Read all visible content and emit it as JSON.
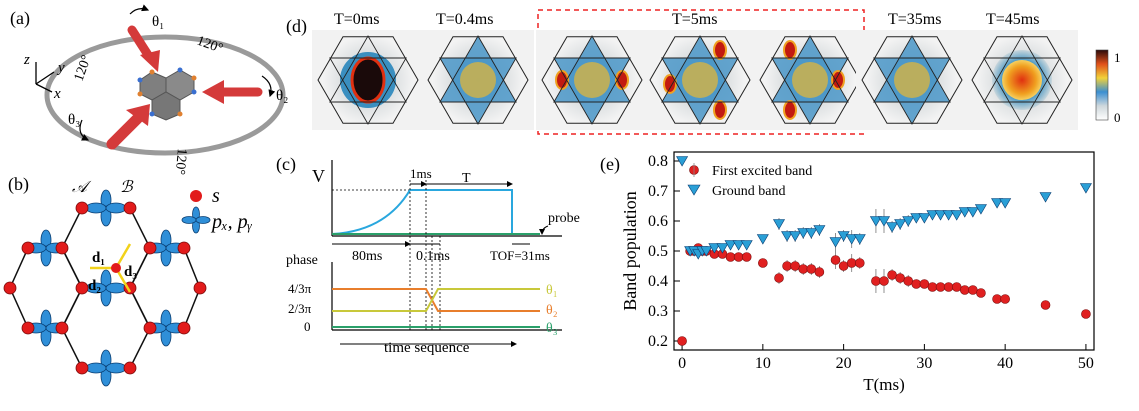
{
  "panels": {
    "a": "(a)",
    "b": "(b)",
    "c": "(c)",
    "d": "(d)",
    "e": "(e)"
  },
  "panel_a": {
    "theta1": "θ₁",
    "theta2": "θ₂",
    "theta3": "θ₃",
    "angle_top": "120°",
    "angle_left": "120°",
    "angle_bottom": "120°",
    "axis_z": "z",
    "axis_y": "y",
    "axis_x": "x"
  },
  "panel_b": {
    "sublattice_A": "𝒜",
    "sublattice_B": "ℬ",
    "legend_s": "s",
    "legend_p": "pₓ, pᵧ",
    "d1": "d₁",
    "d2": "d₂",
    "d3": "d₃"
  },
  "panel_c": {
    "v_label": "V",
    "probe": "probe",
    "t_1ms": "1ms",
    "t_T": "T",
    "t_80ms": "80ms",
    "t_01ms": "0.1ms",
    "tof": "TOF=31ms",
    "phase_label": "phase",
    "y_43pi": "4/3π",
    "y_23pi": "2/3π",
    "y_0": "0",
    "theta1": "θ₁",
    "theta2": "θ₂",
    "theta3": "θ₃",
    "xlabel": "time sequence",
    "colors": {
      "theta1": "#c8c83a",
      "theta2": "#e87e2c",
      "theta3": "#2aa06a",
      "voltage": "#29a7de"
    }
  },
  "panel_d": {
    "times": [
      "T=0ms",
      "T=0.4ms",
      "T=5ms",
      "T=35ms",
      "T=45ms"
    ],
    "colorbar_max": "1",
    "colorbar_min": "0"
  },
  "chart_data": {
    "type": "scatter",
    "title": "",
    "xlabel": "T(ms)",
    "ylabel": "Band population",
    "xlim": [
      -1,
      51
    ],
    "ylim": [
      0.17,
      0.83
    ],
    "xticks": [
      0,
      10,
      20,
      30,
      40,
      50
    ],
    "yticks": [
      0.2,
      0.3,
      0.4,
      0.5,
      0.6,
      0.7,
      0.8
    ],
    "legend_position": "top-left",
    "series": [
      {
        "name": "First excited band",
        "marker": "circle",
        "color": "#e02020",
        "x": [
          0,
          1,
          1.5,
          2,
          2.5,
          3,
          4,
          5,
          6,
          7,
          8,
          10,
          12,
          13,
          14,
          15,
          16,
          17,
          19,
          20,
          21,
          22,
          24,
          25,
          26,
          27,
          28,
          29,
          30,
          31,
          32,
          33,
          34,
          35,
          36,
          37,
          39,
          40,
          45,
          50
        ],
        "y": [
          0.2,
          0.5,
          0.5,
          0.51,
          0.5,
          0.5,
          0.49,
          0.49,
          0.48,
          0.48,
          0.48,
          0.46,
          0.41,
          0.45,
          0.45,
          0.44,
          0.44,
          0.43,
          0.47,
          0.45,
          0.46,
          0.46,
          0.4,
          0.4,
          0.42,
          0.41,
          0.4,
          0.39,
          0.39,
          0.38,
          0.38,
          0.38,
          0.38,
          0.37,
          0.37,
          0.36,
          0.34,
          0.34,
          0.32,
          0.29
        ],
        "err": [
          0,
          0.01,
          0.01,
          0.01,
          0.01,
          0.01,
          0.01,
          0.01,
          0.01,
          0.01,
          0.01,
          0.01,
          0.02,
          0.02,
          0.02,
          0.02,
          0.02,
          0.02,
          0.03,
          0.02,
          0.03,
          0.02,
          0.04,
          0.04,
          0.02,
          0.02,
          0.02,
          0.01,
          0.01,
          0.01,
          0.01,
          0.01,
          0.01,
          0.01,
          0.01,
          0.01,
          0.01,
          0.01,
          0,
          0
        ]
      },
      {
        "name": "Ground band",
        "marker": "triangle-down",
        "color": "#2a9fd6",
        "x": [
          0,
          1,
          1.5,
          2,
          2.5,
          3,
          4,
          5,
          6,
          7,
          8,
          10,
          12,
          13,
          14,
          15,
          16,
          17,
          19,
          20,
          21,
          22,
          24,
          25,
          26,
          27,
          28,
          29,
          30,
          31,
          32,
          33,
          34,
          35,
          36,
          37,
          39,
          40,
          45,
          50
        ],
        "y": [
          0.8,
          0.5,
          0.5,
          0.49,
          0.5,
          0.5,
          0.51,
          0.51,
          0.52,
          0.52,
          0.52,
          0.54,
          0.59,
          0.55,
          0.55,
          0.56,
          0.56,
          0.57,
          0.53,
          0.55,
          0.54,
          0.54,
          0.6,
          0.6,
          0.58,
          0.59,
          0.6,
          0.61,
          0.61,
          0.62,
          0.62,
          0.62,
          0.62,
          0.63,
          0.63,
          0.64,
          0.66,
          0.66,
          0.68,
          0.71
        ],
        "err": [
          0,
          0.01,
          0.01,
          0.01,
          0.01,
          0.01,
          0.01,
          0.01,
          0.01,
          0.01,
          0.01,
          0.01,
          0.02,
          0.02,
          0.02,
          0.02,
          0.02,
          0.02,
          0.03,
          0.02,
          0.03,
          0.02,
          0.04,
          0.04,
          0.02,
          0.02,
          0.02,
          0.01,
          0.01,
          0.01,
          0.01,
          0.01,
          0.01,
          0.01,
          0.01,
          0.01,
          0.01,
          0.01,
          0,
          0
        ]
      }
    ]
  }
}
